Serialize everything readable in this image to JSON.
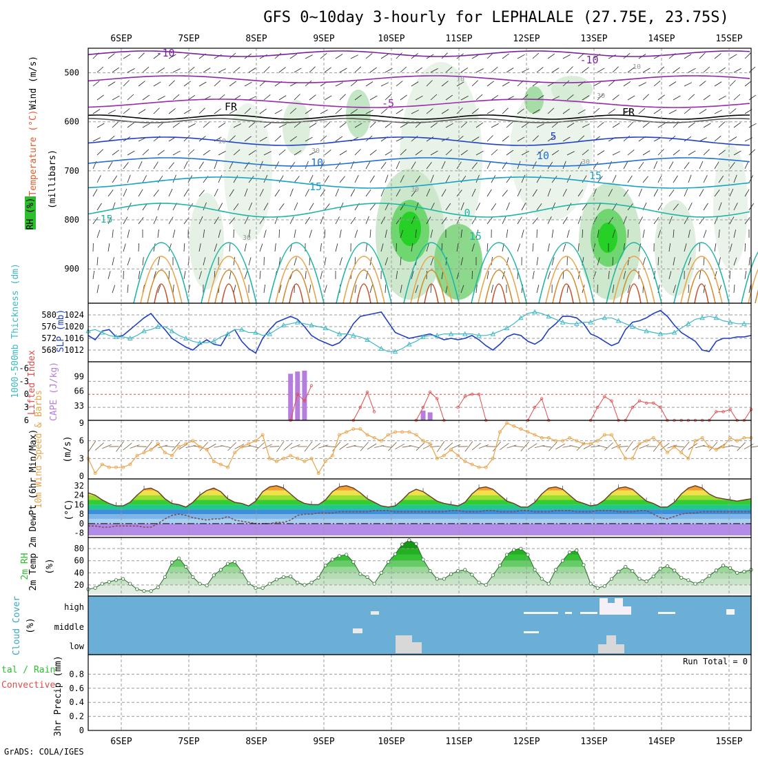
{
  "title": "GFS 0~10day 3-hourly for LEPHALALE (27.75E, 23.75S)",
  "footer": "GrADS: COLA/IGES",
  "colors": {
    "temp_line": "#e8a44a",
    "rh_green": "#2dbd2d",
    "cloud_bg": "#6baed6",
    "cape_bar": "#b57edc",
    "slp_line": "#1f3fbf",
    "thick_line": "#3cb8c4",
    "li_line": "#e34a4a",
    "wind_line": "#e8a44a"
  },
  "chart_data": [
    {
      "type": "contour",
      "panel": "upper-air",
      "ylabel_parts": [
        "RH (%)",
        "Temperature (°C)",
        "Wind (m/s)"
      ],
      "ylabel_right": "(millibars)",
      "y_ticks": [
        "500",
        "600",
        "700",
        "800",
        "900"
      ],
      "x_dates": [
        "6SEP",
        "7SEP",
        "8SEP",
        "9SEP",
        "10SEP",
        "11SEP",
        "12SEP",
        "13SEP",
        "14SEP",
        "15SEP"
      ],
      "contour_labels": [
        "-10",
        "-10",
        "-5",
        "FR",
        "FR",
        "5",
        "10",
        "10",
        "15",
        "15",
        "-15",
        "15",
        "0"
      ],
      "rh_labels": [
        "10",
        "10",
        "30",
        "30",
        "30",
        "10",
        "30",
        "30"
      ]
    },
    {
      "type": "line",
      "panel": "slp-thickness",
      "ylabel_left": "1000-500mb Thickness (dm)",
      "ylabel_right": "SLP (mb)",
      "y_ticks_left": [
        "580",
        "576",
        "572",
        "568"
      ],
      "y_ticks_right": [
        "1024",
        "1020",
        "1016",
        "1012"
      ],
      "series": [
        {
          "name": "SLP (mb)",
          "values": [
            1017,
            1015.5,
            1018.5,
            1019,
            1016.5,
            1017,
            1019,
            1021,
            1023,
            1024.5,
            1021.5,
            1019,
            1016,
            1014.5,
            1013,
            1012,
            1014,
            1015.5,
            1014,
            1013.5,
            1017.5,
            1019,
            1015,
            1012.5,
            1011,
            1016,
            1019,
            1021.5,
            1022.5,
            1023.5,
            1022.5,
            1020,
            1017,
            1015.5,
            1014.5,
            1013.5,
            1014.5,
            1017,
            1021,
            1023.5,
            1024,
            1024.5,
            1025,
            1021.5,
            1018,
            1017,
            1016,
            1016.5,
            1017,
            1017.5,
            1016.5,
            1015.5,
            1016,
            1015.5,
            1016,
            1017,
            1015.5,
            1013.5,
            1012,
            1014,
            1016.5,
            1017.5,
            1017,
            1015,
            1014,
            1015.5,
            1019,
            1021,
            1023.5,
            1023.5,
            1023,
            1021,
            1017.5,
            1016.5,
            1015,
            1013.5,
            1014.5,
            1019,
            1021.5,
            1022,
            1023,
            1024.5,
            1025.5,
            1023.5,
            1020.5,
            1018,
            1016.5,
            1015,
            1012,
            1011.5,
            1015,
            1016,
            1016,
            1016.5,
            1016.5,
            1017
          ]
        },
        {
          "name": "1000-500mb Thickness (dm)",
          "values": [
            574.5,
            575,
            574,
            573,
            572.5,
            572.5,
            572,
            573,
            574.5,
            575,
            576,
            576,
            574.5,
            573,
            572,
            571,
            570.5,
            570.5,
            571,
            572.5,
            573.5,
            575,
            575,
            574,
            574,
            573,
            573.5,
            575,
            576.5,
            577,
            577.5,
            577,
            576.5,
            576,
            575.5,
            574.5,
            573.5,
            573.5,
            573,
            572.5,
            571.5,
            570,
            568.5,
            567.5,
            567.5,
            568.5,
            570,
            571,
            572.5,
            573,
            573,
            573.5,
            573.5,
            573.5,
            573.5,
            573.5,
            573,
            573,
            573.5,
            574.5,
            575.5,
            577,
            579,
            580.5,
            581,
            580.5,
            579.5,
            578.5,
            577.5,
            577,
            577,
            577.5,
            577.5,
            578.5,
            579,
            579,
            578,
            577,
            576,
            575,
            574.5,
            574,
            573.5,
            573.5,
            574,
            575.5,
            577,
            578.5,
            579,
            579.5,
            579,
            578,
            577.5,
            577,
            577,
            577
          ]
        }
      ]
    },
    {
      "type": "bar",
      "panel": "cape-li",
      "ylabel_left": "Lifted Index",
      "ylabel_right": "CAPE (J/kg)",
      "y_ticks_li": [
        "-6",
        "-3",
        "0",
        "3",
        "6"
      ],
      "y_ticks_cape": [
        "99",
        "66",
        "33"
      ],
      "series": [
        {
          "name": "CAPE (J/kg)",
          "x_index": [
            29,
            30,
            31,
            48,
            49
          ],
          "values": [
            105,
            110,
            112,
            22,
            18
          ]
        },
        {
          "name": "Lifted Index",
          "x_index": [
            29,
            30,
            31,
            32,
            38,
            39,
            40,
            41,
            47,
            48,
            49,
            50,
            51,
            53,
            54,
            55,
            56,
            57,
            63,
            64,
            65,
            66,
            72,
            73,
            74,
            75,
            76,
            77,
            78,
            79,
            80,
            81,
            82,
            83,
            84,
            85,
            86,
            87,
            88,
            89,
            90,
            91,
            92,
            93,
            94,
            95
          ],
          "values": [
            6,
            0,
            1.5,
            -2,
            6,
            3,
            -0.5,
            4,
            6,
            3,
            -0.5,
            1,
            6,
            3,
            0.5,
            0,
            0,
            6,
            6,
            3,
            1,
            6,
            6,
            3,
            0.5,
            1.5,
            6,
            6,
            3,
            1.5,
            2,
            2,
            3,
            6,
            6,
            6,
            6,
            6,
            6,
            6,
            4,
            4,
            3.5,
            6,
            6,
            3.5
          ]
        }
      ]
    },
    {
      "type": "line",
      "panel": "wind-10m",
      "ylabel_left": "10m Wind Speed & Barbs",
      "ylabel_right": "(m/s)",
      "y_ticks": [
        "9",
        "6",
        "3",
        "0"
      ],
      "series": [
        {
          "name": "10m Wind Speed",
          "values": [
            3,
            0.5,
            2,
            1.5,
            1.5,
            1.5,
            2,
            3.5,
            4,
            4.5,
            5.5,
            4,
            3.5,
            5,
            5.5,
            6,
            5,
            4.5,
            2.5,
            2,
            1.5,
            4,
            5,
            5.5,
            6,
            7,
            3,
            2.5,
            3,
            3.5,
            3,
            2.5,
            3,
            0.5,
            2.5,
            3.5,
            7,
            7.5,
            8,
            8,
            7,
            6.5,
            6,
            7,
            7.5,
            7.5,
            7.5,
            7,
            6,
            5.5,
            3,
            3.5,
            4.5,
            3.5,
            2.5,
            2,
            1.5,
            1.5,
            3,
            7.5,
            9,
            8.5,
            8,
            7.5,
            7,
            6.5,
            6.5,
            6,
            6,
            6.5,
            6,
            5.5,
            5.5,
            6,
            7,
            7,
            5,
            3,
            3,
            5.5,
            6,
            6.5,
            5.5,
            4,
            5,
            4,
            3,
            6,
            6.5,
            5,
            4.5,
            5,
            6.5,
            6,
            6.5,
            6.5
          ]
        }
      ]
    },
    {
      "type": "area",
      "panel": "temp-2m",
      "ylabel_left": "2m Temp 2m DewPt (6hr Min/Max)",
      "ylabel_right": "(°C)",
      "y_ticks": [
        "32",
        "24",
        "16",
        "8",
        "0",
        "-8"
      ],
      "series": [
        {
          "name": "2m Temp",
          "values": [
            26,
            24,
            20,
            17,
            15,
            15,
            18,
            24,
            29,
            30,
            27,
            21,
            17,
            16,
            14,
            18,
            24,
            28,
            30,
            27,
            21,
            18,
            17,
            15,
            19,
            27,
            31,
            32,
            30,
            25,
            20,
            17,
            16,
            16,
            20,
            27,
            31,
            32,
            30,
            26,
            21,
            18,
            15,
            14,
            15,
            20,
            26,
            29,
            27,
            23,
            19,
            17,
            16,
            15,
            18,
            25,
            30,
            31,
            29,
            24,
            19,
            17,
            14,
            14,
            18,
            25,
            30,
            31,
            29,
            24,
            19,
            17,
            15,
            16,
            20,
            26,
            30,
            31,
            29,
            24,
            19,
            17,
            14,
            14,
            18,
            25,
            30,
            32,
            30,
            25,
            22,
            21,
            20,
            19,
            20,
            21
          ]
        },
        {
          "name": "2m DewPt",
          "values": [
            -2,
            -2,
            -3,
            -3,
            -2,
            -2,
            -2,
            -2,
            -3,
            -3,
            0,
            4,
            7,
            8,
            7,
            5,
            4,
            3,
            4,
            4,
            6,
            3,
            2,
            1,
            0,
            0,
            0,
            1,
            1,
            3,
            7,
            8,
            8,
            9,
            9,
            9,
            10,
            10,
            10,
            10,
            10,
            11,
            11,
            11,
            10,
            10,
            10,
            10,
            10,
            10,
            10,
            10,
            11,
            11,
            10,
            10,
            10,
            11,
            11,
            10,
            10,
            10,
            11,
            11,
            10,
            10,
            10,
            11,
            11,
            11,
            10,
            10,
            10,
            11,
            11,
            11,
            10,
            10,
            10,
            11,
            11,
            8,
            5,
            4,
            6,
            8,
            9,
            9,
            10,
            10,
            10,
            10,
            10,
            10,
            10,
            10
          ]
        }
      ]
    },
    {
      "type": "area",
      "panel": "rh-2m",
      "ylabel_left": "2m RH",
      "ylabel_right": "(%)",
      "y_ticks": [
        "80",
        "60",
        "40",
        "20"
      ],
      "series": [
        {
          "name": "2m RH",
          "values": [
            13,
            15,
            22,
            25,
            28,
            30,
            22,
            13,
            10,
            10,
            16,
            33,
            57,
            64,
            50,
            33,
            22,
            19,
            36,
            45,
            55,
            58,
            42,
            23,
            15,
            15,
            22,
            29,
            33,
            34,
            24,
            20,
            24,
            32,
            52,
            62,
            68,
            70,
            58,
            38,
            33,
            22,
            40,
            58,
            71,
            87,
            94,
            88,
            62,
            43,
            30,
            30,
            38,
            43,
            45,
            37,
            24,
            20,
            36,
            52,
            70,
            78,
            80,
            70,
            45,
            30,
            22,
            45,
            60,
            74,
            77,
            53,
            22,
            15,
            18,
            30,
            42,
            50,
            43,
            30,
            26,
            34,
            47,
            51,
            44,
            32,
            28,
            22,
            26,
            35,
            44,
            52,
            48,
            40,
            42,
            45
          ]
        }
      ]
    },
    {
      "type": "heatmap",
      "panel": "cloud-cover",
      "ylabel_left": "Cloud Cover",
      "ylabel_right": "(%)",
      "rows": [
        "high",
        "middle",
        "low"
      ]
    },
    {
      "type": "bar",
      "panel": "precip",
      "ylabel_left": "Total / Rain Convective",
      "ylabel_right": "3hr Precip (mm)",
      "y_ticks": [
        "0.8",
        "0.6",
        "0.4",
        "0.2",
        "0"
      ],
      "ylim": [
        0,
        1
      ],
      "annotation": "Run Total = 0",
      "values": []
    }
  ]
}
